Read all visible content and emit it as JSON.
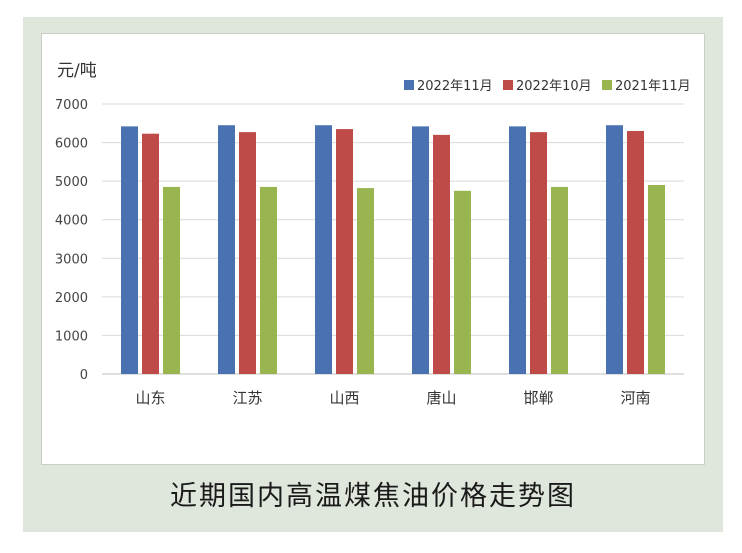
{
  "caption": "近期国内高温煤焦油价格走势图",
  "chart_data": {
    "type": "bar",
    "ylabel": "元/吨",
    "ylim": [
      0,
      7000
    ],
    "yticks": [
      0,
      1000,
      2000,
      3000,
      4000,
      5000,
      6000,
      7000
    ],
    "grid": true,
    "legend_position": "top-right",
    "categories": [
      "山东",
      "江苏",
      "山西",
      "唐山",
      "邯郸",
      "河南"
    ],
    "series": [
      {
        "name": "2022年11月",
        "color": "#4a72b0",
        "values": [
          6420,
          6450,
          6450,
          6420,
          6420,
          6450
        ]
      },
      {
        "name": "2022年10月",
        "color": "#bf4b48",
        "values": [
          6230,
          6270,
          6350,
          6200,
          6270,
          6300
        ]
      },
      {
        "name": "2021年11月",
        "color": "#98b54f",
        "values": [
          4850,
          4850,
          4820,
          4750,
          4850,
          4900
        ]
      }
    ]
  }
}
